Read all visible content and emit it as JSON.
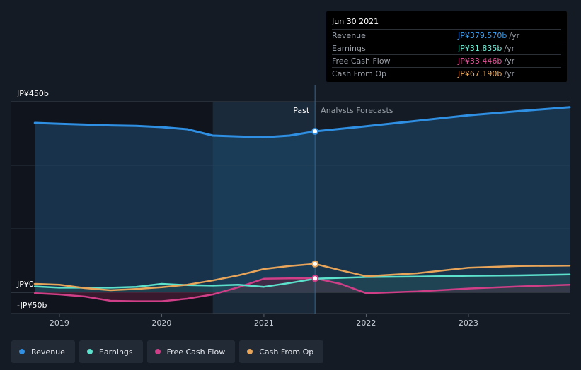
{
  "tooltip": {
    "date": "Jun 30 2021",
    "rows": [
      {
        "name": "Revenue",
        "value": "JP¥379.570b",
        "unit": "/yr",
        "color": "#3ea0f0"
      },
      {
        "name": "Earnings",
        "value": "JP¥31.835b",
        "unit": "/yr",
        "color": "#6ff0d8"
      },
      {
        "name": "Free Cash Flow",
        "value": "JP¥33.446b",
        "unit": "/yr",
        "color": "#e2569a"
      },
      {
        "name": "Cash From Op",
        "value": "JP¥67.190b",
        "unit": "/yr",
        "color": "#f0ac5c"
      }
    ]
  },
  "legend": [
    {
      "label": "Revenue",
      "color": "#2f8fe3"
    },
    {
      "label": "Earnings",
      "color": "#5ce1cc"
    },
    {
      "label": "Free Cash Flow",
      "color": "#cf3f87"
    },
    {
      "label": "Cash From Op",
      "color": "#e8a55a"
    }
  ],
  "chart_data": {
    "type": "line",
    "x_unit": "year",
    "xlim": [
      2018.53,
      2023.99
    ],
    "ylim": [
      -50,
      450
    ],
    "y_tick_labels": [
      {
        "value": 450,
        "label": "JP¥450b"
      },
      {
        "value": 0,
        "label": "JP¥0"
      },
      {
        "value": -50,
        "label": "-JP¥50b"
      }
    ],
    "x_tick_labels": [
      {
        "value": 2019,
        "label": "2019"
      },
      {
        "value": 2020,
        "label": "2020"
      },
      {
        "value": 2021,
        "label": "2021"
      },
      {
        "value": 2022,
        "label": "2022"
      },
      {
        "value": 2023,
        "label": "2023"
      }
    ],
    "divider": {
      "x": 2021.5,
      "past_label": "Past",
      "forecast_label": "Analysts Forecasts"
    },
    "highlight_range": [
      2020.5,
      2021.5
    ],
    "series": [
      {
        "name": "Revenue",
        "color": "#2f8fe3",
        "fill": true,
        "points": [
          [
            2018.76,
            400
          ],
          [
            2019,
            398
          ],
          [
            2019.25,
            396
          ],
          [
            2019.5,
            394
          ],
          [
            2019.75,
            393
          ],
          [
            2020,
            390
          ],
          [
            2020.25,
            385
          ],
          [
            2020.5,
            370
          ],
          [
            2020.75,
            368
          ],
          [
            2021,
            366
          ],
          [
            2021.25,
            370
          ],
          [
            2021.5,
            380
          ],
          [
            2021.75,
            386
          ],
          [
            2022,
            392
          ],
          [
            2022.5,
            405
          ],
          [
            2023,
            418
          ],
          [
            2023.5,
            428
          ],
          [
            2023.99,
            437
          ]
        ]
      },
      {
        "name": "Earnings",
        "color": "#5ce1cc",
        "fill": false,
        "points": [
          [
            2018.76,
            14
          ],
          [
            2019,
            11
          ],
          [
            2019.25,
            11
          ],
          [
            2019.5,
            11
          ],
          [
            2019.75,
            13
          ],
          [
            2020,
            20
          ],
          [
            2020.25,
            17
          ],
          [
            2020.5,
            16
          ],
          [
            2020.75,
            18
          ],
          [
            2021,
            13
          ],
          [
            2021.25,
            22
          ],
          [
            2021.5,
            32
          ],
          [
            2022,
            36
          ],
          [
            2022.5,
            37
          ],
          [
            2023,
            39
          ],
          [
            2023.5,
            40
          ],
          [
            2023.99,
            42
          ]
        ]
      },
      {
        "name": "Free Cash Flow",
        "color": "#cf3f87",
        "fill": false,
        "points": [
          [
            2018.76,
            -2
          ],
          [
            2019,
            -5
          ],
          [
            2019.25,
            -10
          ],
          [
            2019.5,
            -20
          ],
          [
            2019.75,
            -21
          ],
          [
            2020,
            -21
          ],
          [
            2020.25,
            -15
          ],
          [
            2020.5,
            -5
          ],
          [
            2020.75,
            12
          ],
          [
            2021,
            32
          ],
          [
            2021.25,
            33
          ],
          [
            2021.5,
            33
          ],
          [
            2021.75,
            20
          ],
          [
            2022,
            -2
          ],
          [
            2022.5,
            2
          ],
          [
            2023,
            9
          ],
          [
            2023.5,
            14
          ],
          [
            2023.99,
            18
          ]
        ]
      },
      {
        "name": "Cash From Op",
        "color": "#e8a55a",
        "fill": false,
        "points": [
          [
            2018.76,
            20
          ],
          [
            2019,
            18
          ],
          [
            2019.25,
            10
          ],
          [
            2019.5,
            5
          ],
          [
            2019.75,
            8
          ],
          [
            2020,
            12
          ],
          [
            2020.25,
            18
          ],
          [
            2020.5,
            28
          ],
          [
            2020.75,
            40
          ],
          [
            2021,
            55
          ],
          [
            2021.25,
            62
          ],
          [
            2021.5,
            67
          ],
          [
            2021.75,
            52
          ],
          [
            2022,
            38
          ],
          [
            2022.5,
            45
          ],
          [
            2023,
            58
          ],
          [
            2023.5,
            62
          ],
          [
            2023.99,
            63
          ]
        ]
      }
    ],
    "highlight_points": [
      {
        "series": "Revenue",
        "x": 2021.5,
        "y": 380
      },
      {
        "series": "Cash From Op",
        "x": 2021.5,
        "y": 67
      },
      {
        "series": "Free Cash Flow",
        "x": 2021.5,
        "y": 33
      }
    ]
  }
}
